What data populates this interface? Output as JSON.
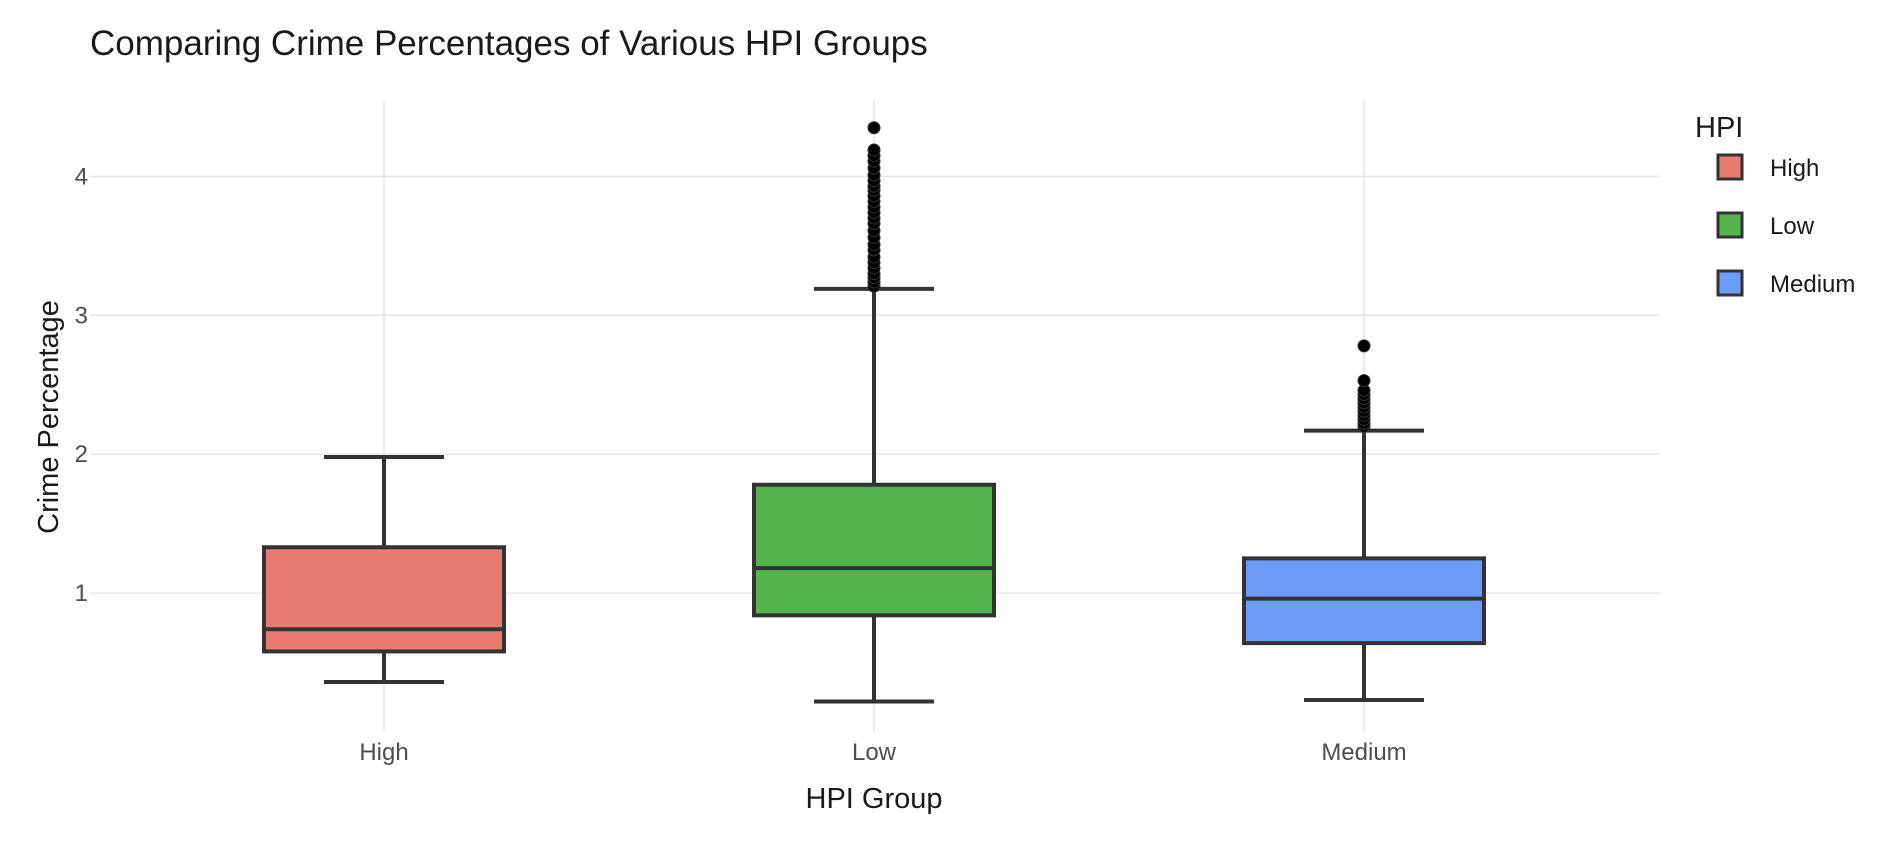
{
  "chart_data": {
    "type": "box",
    "title": "Comparing Crime Percentages of Various HPI Groups",
    "xlabel": "HPI Group",
    "ylabel": "Crime Percentage",
    "ylim": [
      0.0,
      4.55
    ],
    "yticks": [
      1,
      2,
      3,
      4
    ],
    "grid": true,
    "legend": {
      "title": "HPI",
      "placement": "right",
      "entries": [
        "High",
        "Low",
        "Medium"
      ]
    },
    "categories": [
      "High",
      "Low",
      "Medium"
    ],
    "series": [
      {
        "name": "High",
        "color": "#E87C72",
        "whisker_low": 0.36,
        "q1": 0.58,
        "median": 0.74,
        "q3": 1.33,
        "whisker_high": 1.98,
        "outliers": []
      },
      {
        "name": "Low",
        "color": "#53B54C",
        "whisker_low": 0.22,
        "q1": 0.84,
        "median": 1.18,
        "q3": 1.78,
        "whisker_high": 3.19,
        "outliers": [
          3.21,
          3.24,
          3.27,
          3.3,
          3.34,
          3.38,
          3.42,
          3.47,
          3.51,
          3.56,
          3.61,
          3.66,
          3.7,
          3.74,
          3.78,
          3.82,
          3.86,
          3.9,
          3.93,
          3.97,
          4.01,
          4.06,
          4.11,
          4.15,
          4.19,
          4.35
        ]
      },
      {
        "name": "Medium",
        "color": "#6B9CF7",
        "whisker_low": 0.23,
        "q1": 0.64,
        "median": 0.96,
        "q3": 1.25,
        "whisker_high": 2.17,
        "outliers": [
          2.2,
          2.22,
          2.25,
          2.28,
          2.31,
          2.34,
          2.37,
          2.4,
          2.43,
          2.46,
          2.53,
          2.78
        ]
      }
    ]
  }
}
